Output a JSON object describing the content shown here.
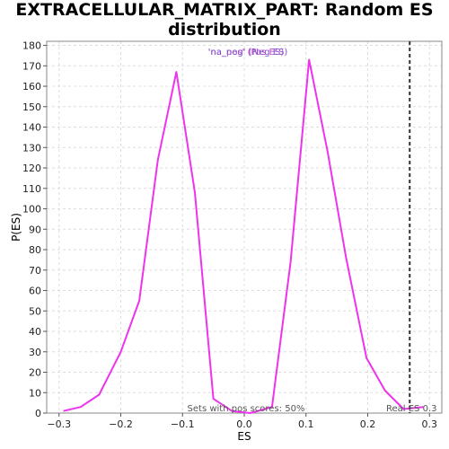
{
  "chart_data": {
    "type": "line",
    "title": "EXTRACELLULAR_MATRIX_PART: Random ES distribution",
    "xlabel": "ES",
    "ylabel": "P(ES)",
    "xlim": [
      -0.32,
      0.32
    ],
    "ylim": [
      0,
      182
    ],
    "xticks": [
      -0.3,
      -0.2,
      -0.1,
      0.0,
      0.1,
      0.2,
      0.3
    ],
    "xtick_labels": [
      "−0.3",
      "−0.2",
      "−0.1",
      "0.0",
      "0.1",
      "0.2",
      "0.3"
    ],
    "yticks": [
      0,
      10,
      20,
      30,
      40,
      50,
      60,
      70,
      80,
      90,
      100,
      110,
      120,
      130,
      140,
      150,
      160,
      170,
      180
    ],
    "grid": true,
    "legend": {
      "placement": "top-center",
      "entries": [
        {
          "text": "'na_pos' (Pos ES)",
          "color": "#cc44cc"
        },
        {
          "text": "'na_neg' (Neg ES)",
          "color": "#7a4fd0"
        }
      ]
    },
    "series": [
      {
        "color": "#ee33ee",
        "x": [
          -0.293,
          -0.265,
          -0.235,
          -0.2,
          -0.17,
          -0.14,
          -0.11,
          -0.08,
          -0.05,
          -0.02,
          0.01,
          0.045,
          0.075,
          0.105,
          0.135,
          0.165,
          0.198,
          0.228,
          0.258,
          0.29
        ],
        "y": [
          1,
          3,
          9,
          30,
          55,
          124,
          167,
          108,
          7,
          1,
          0,
          3,
          74,
          173,
          128,
          76,
          27,
          11,
          2,
          3
        ]
      }
    ],
    "real_es": {
      "x": 0.268,
      "label": "Real ES 0.3",
      "style": "dashed",
      "color": "#333333"
    },
    "annotation": "Sets with pos scores: 50%"
  }
}
